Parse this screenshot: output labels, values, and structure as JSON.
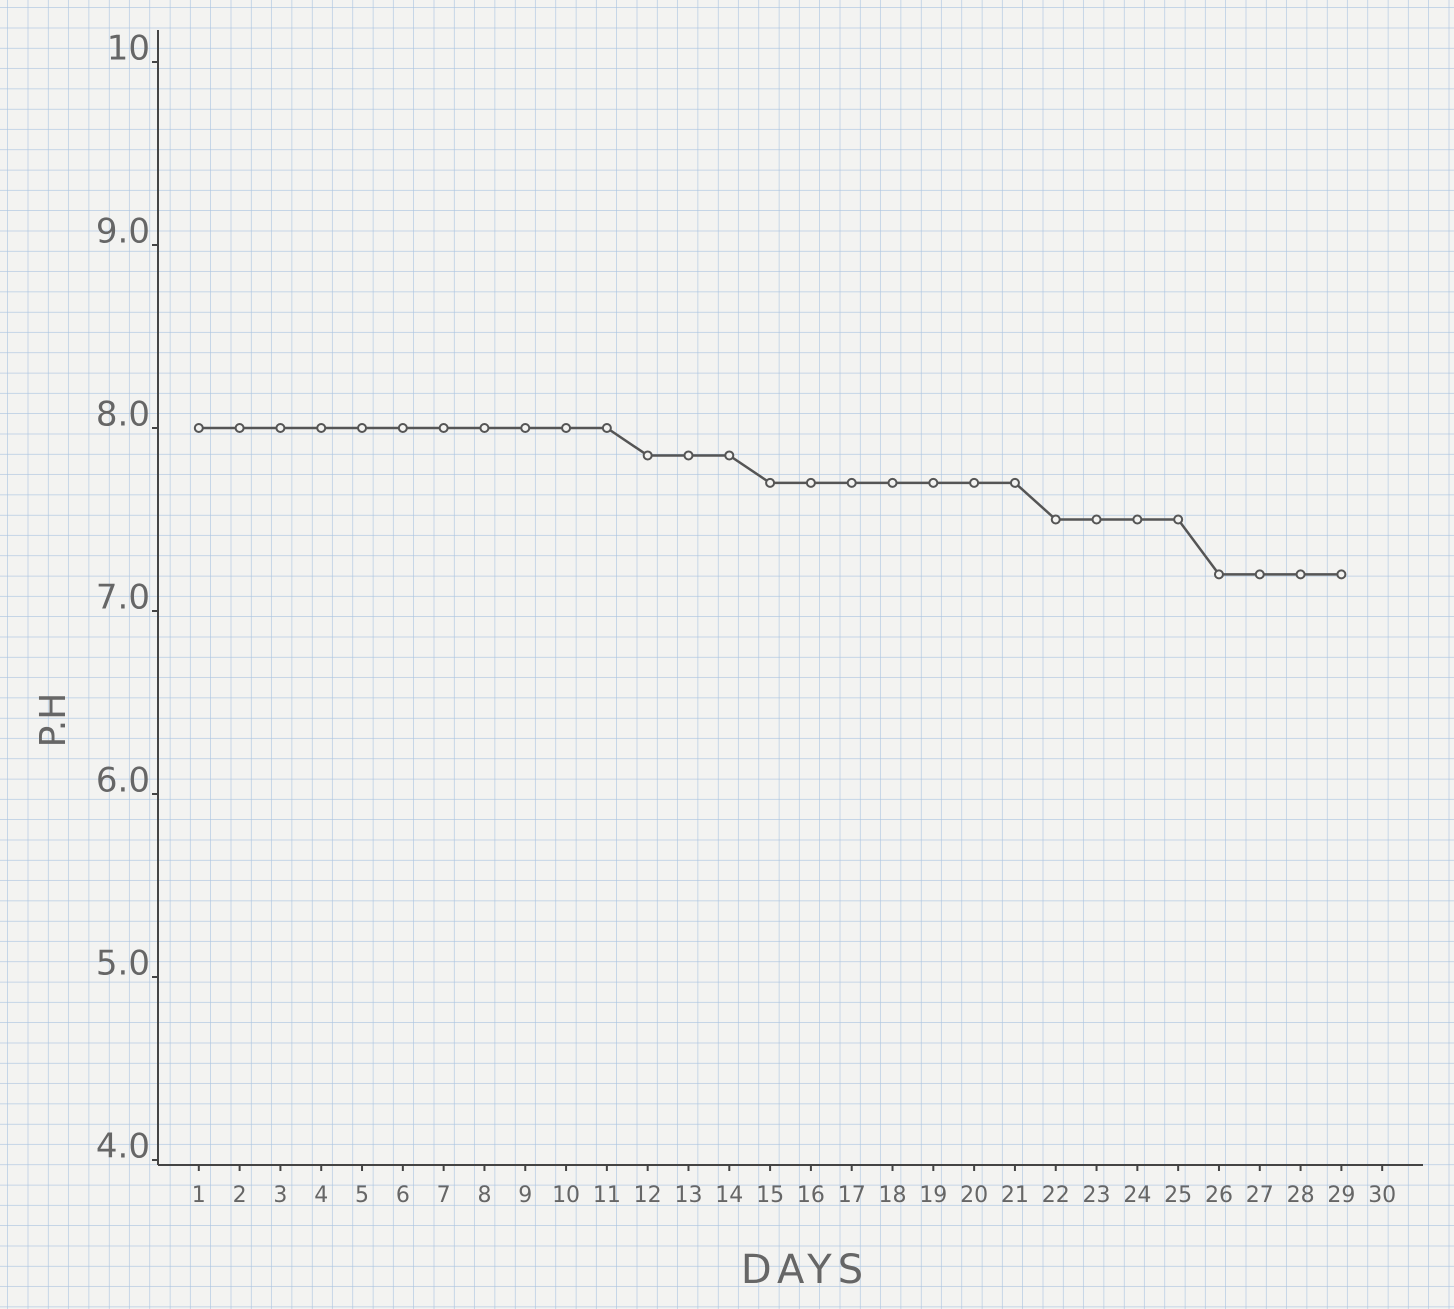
{
  "chart_data": {
    "type": "line",
    "xlabel": "DAYS",
    "ylabel": "P.H",
    "x": [
      1,
      2,
      3,
      4,
      5,
      6,
      7,
      8,
      9,
      10,
      11,
      12,
      13,
      14,
      15,
      16,
      17,
      18,
      19,
      20,
      21,
      22,
      23,
      24,
      25,
      26,
      27,
      28,
      29
    ],
    "values": [
      8.0,
      8.0,
      8.0,
      8.0,
      8.0,
      8.0,
      8.0,
      8.0,
      8.0,
      8.0,
      8.0,
      7.85,
      7.85,
      7.85,
      7.7,
      7.7,
      7.7,
      7.7,
      7.7,
      7.7,
      7.7,
      7.5,
      7.5,
      7.5,
      7.5,
      7.2,
      7.2,
      7.2,
      7.2
    ],
    "color": "#555555",
    "xlim": [
      0,
      31
    ],
    "xticks": [
      1,
      2,
      3,
      4,
      5,
      6,
      7,
      8,
      9,
      10,
      11,
      12,
      13,
      14,
      15,
      16,
      17,
      18,
      19,
      20,
      21,
      22,
      23,
      24,
      25,
      26,
      27,
      28,
      29,
      30
    ],
    "ylim": [
      4,
      10
    ],
    "yticks": [
      {
        "value": 4,
        "label": "4.0"
      },
      {
        "value": 5,
        "label": "5.0"
      },
      {
        "value": 6,
        "label": "6.0"
      },
      {
        "value": 7,
        "label": "7.0"
      },
      {
        "value": 8,
        "label": "8.0"
      },
      {
        "value": 9,
        "label": "9.0"
      },
      10
    ],
    "grid": false
  }
}
